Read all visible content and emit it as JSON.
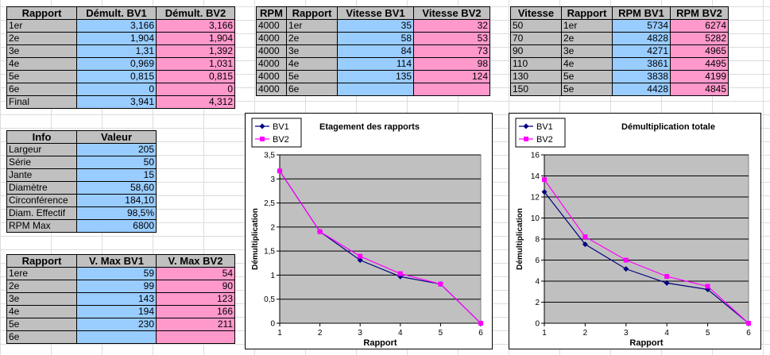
{
  "demult": {
    "headers": [
      "Rapport",
      "Démult. BV1",
      "Démult. BV2"
    ],
    "rows": [
      [
        "1er",
        "3,166",
        "3,166"
      ],
      [
        "2e",
        "1,904",
        "1,904"
      ],
      [
        "3e",
        "1,31",
        "1,392"
      ],
      [
        "4e",
        "0,969",
        "1,031"
      ],
      [
        "5e",
        "0,815",
        "0,815"
      ],
      [
        "6e",
        "0",
        "0"
      ],
      [
        "Final",
        "3,941",
        "4,312"
      ]
    ]
  },
  "info": {
    "headers": [
      "Info",
      "Valeur"
    ],
    "rows": [
      [
        "Largeur",
        "205"
      ],
      [
        "Série",
        "50"
      ],
      [
        "Jante",
        "15"
      ],
      [
        "Diamètre",
        "58,60"
      ],
      [
        "Circonférence",
        "184,10"
      ],
      [
        "Diam. Effectif",
        "98,5%"
      ],
      [
        "RPM Max",
        "6800"
      ]
    ]
  },
  "vmax": {
    "headers": [
      "Rapport",
      "V. Max BV1",
      "V. Max BV2"
    ],
    "rows": [
      [
        "1ere",
        "59",
        "54"
      ],
      [
        "2e",
        "99",
        "90"
      ],
      [
        "3e",
        "143",
        "123"
      ],
      [
        "4e",
        "194",
        "166"
      ],
      [
        "5e",
        "230",
        "211"
      ],
      [
        "6e",
        "",
        ""
      ]
    ]
  },
  "vitesse": {
    "headers": [
      "RPM",
      "Rapport",
      "Vitesse BV1",
      "Vitesse BV2"
    ],
    "rows": [
      [
        "4000",
        "1er",
        "35",
        "32"
      ],
      [
        "4000",
        "2e",
        "58",
        "53"
      ],
      [
        "4000",
        "3e",
        "84",
        "73"
      ],
      [
        "4000",
        "4e",
        "114",
        "98"
      ],
      [
        "4000",
        "5e",
        "135",
        "124"
      ],
      [
        "4000",
        "6e",
        "",
        ""
      ]
    ]
  },
  "rpm": {
    "headers": [
      "Vitesse",
      "Rapport",
      "RPM BV1",
      "RPM BV2"
    ],
    "rows": [
      [
        "50",
        "1er",
        "5734",
        "6274"
      ],
      [
        "70",
        "2e",
        "4828",
        "5282"
      ],
      [
        "90",
        "3e",
        "4271",
        "4965"
      ],
      [
        "110",
        "4e",
        "3861",
        "4495"
      ],
      [
        "130",
        "5e",
        "3838",
        "4199"
      ],
      [
        "150",
        "5e",
        "4428",
        "4845"
      ]
    ]
  },
  "colors": {
    "bv1": "#000080",
    "bv2": "#ff00ff",
    "plot_bg": "#c0c0c0",
    "cell_blue": "#99ccff",
    "cell_pink": "#ff99cc"
  },
  "chart_data": [
    {
      "type": "line",
      "title": "Etagement des rapports",
      "xlabel": "Rapport",
      "ylabel": "Démultiplication",
      "x": [
        1,
        2,
        3,
        4,
        5,
        6
      ],
      "ylim": [
        0,
        3.5
      ],
      "yticks": [
        "0",
        "0,5",
        "1",
        "1,5",
        "2",
        "2,5",
        "3",
        "3,5"
      ],
      "ytick_values": [
        0,
        0.5,
        1,
        1.5,
        2,
        2.5,
        3,
        3.5
      ],
      "grid": true,
      "legend": "top-left",
      "series": [
        {
          "name": "BV1",
          "values": [
            3.166,
            1.904,
            1.31,
            0.969,
            0.815,
            0
          ]
        },
        {
          "name": "BV2",
          "values": [
            3.166,
            1.904,
            1.392,
            1.031,
            0.815,
            0
          ]
        }
      ]
    },
    {
      "type": "line",
      "title": "Démultiplication totale",
      "xlabel": "Rapport",
      "ylabel": "Démultiplication",
      "x": [
        1,
        2,
        3,
        4,
        5,
        6
      ],
      "ylim": [
        0,
        16
      ],
      "yticks": [
        "0",
        "2",
        "4",
        "6",
        "8",
        "10",
        "12",
        "14",
        "16"
      ],
      "ytick_values": [
        0,
        2,
        4,
        6,
        8,
        10,
        12,
        14,
        16
      ],
      "grid": true,
      "legend": "top-left",
      "series": [
        {
          "name": "BV1",
          "values": [
            12.48,
            7.5,
            5.16,
            3.82,
            3.21,
            0
          ]
        },
        {
          "name": "BV2",
          "values": [
            13.65,
            8.21,
            6.0,
            4.45,
            3.51,
            0
          ]
        }
      ]
    }
  ]
}
